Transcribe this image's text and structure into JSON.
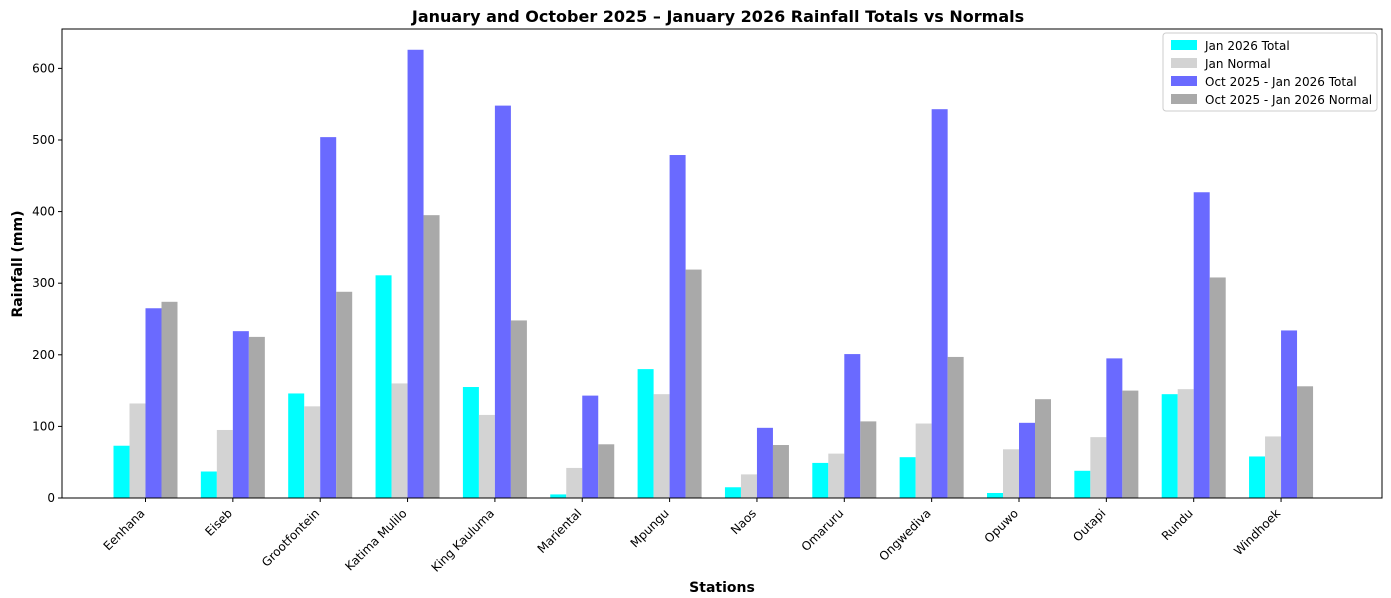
{
  "chart_data": {
    "type": "bar",
    "title": "January and October 2025 – January 2026 Rainfall Totals vs Normals",
    "xlabel": "Stations",
    "ylabel": "Rainfall (mm)",
    "ylim": [
      0,
      655
    ],
    "yticks": [
      0,
      100,
      200,
      300,
      400,
      500,
      600
    ],
    "grid": false,
    "legend_position": "top-right",
    "categories": [
      "Eenhana",
      "Eiseb",
      "Grootfontein",
      "Katima Mulilo",
      "King Kauluma",
      "Mariental",
      "Mpungu",
      "Naos",
      "Omaruru",
      "Ongwediva",
      "Opuwo",
      "Outapi",
      "Rundu",
      "Windhoek"
    ],
    "series": [
      {
        "name": "Jan 2026 Total",
        "color": "#00ffff",
        "values": [
          73,
          37,
          146,
          311,
          155,
          5,
          180,
          15,
          49,
          57,
          7,
          38,
          145,
          58
        ]
      },
      {
        "name": "Jan Normal",
        "color": "#d3d3d3",
        "values": [
          132,
          95,
          128,
          160,
          116,
          42,
          145,
          33,
          62,
          104,
          68,
          85,
          152,
          86
        ]
      },
      {
        "name": "Oct 2025 - Jan 2026 Total",
        "color": "#6a6aff",
        "values": [
          265,
          233,
          504,
          626,
          548,
          143,
          479,
          98,
          201,
          543,
          105,
          195,
          427,
          234
        ]
      },
      {
        "name": "Oct 2025 - Jan 2026 Normal",
        "color": "#a9a9a9",
        "values": [
          274,
          225,
          288,
          395,
          248,
          75,
          319,
          74,
          107,
          197,
          138,
          150,
          308,
          156
        ]
      }
    ]
  }
}
